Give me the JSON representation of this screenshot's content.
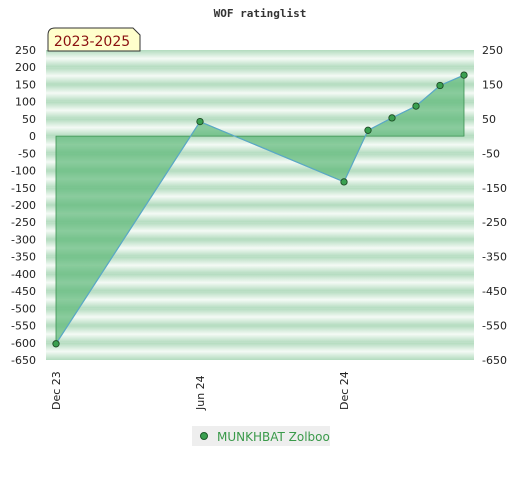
{
  "chart_data": {
    "type": "area",
    "title": "WOF ratinglist",
    "period_label": "2023-2025",
    "xlabel": "",
    "ylabel": "",
    "ylim": [
      -650,
      250
    ],
    "y_ticks": [
      250,
      200,
      150,
      100,
      50,
      0,
      -50,
      -100,
      -150,
      -200,
      -250,
      -300,
      -350,
      -400,
      -450,
      -500,
      -550,
      -600,
      -650
    ],
    "y_ticks_right": [
      250,
      150,
      50,
      -50,
      -150,
      -250,
      -350,
      -450,
      -550,
      -650
    ],
    "x_ticks": [
      {
        "label": "Dec 23",
        "x": "2023-12"
      },
      {
        "label": "Jun 24",
        "x": "2024-06"
      },
      {
        "label": "Dec 24",
        "x": "2024-12"
      }
    ],
    "grid": true,
    "legend_position": "bottom-center",
    "series": [
      {
        "name": "MUNKHBAT Zolboo",
        "points": [
          {
            "x": "2023-12",
            "y": -603
          },
          {
            "x": "2024-06",
            "y": 42
          },
          {
            "x": "2024-12",
            "y": -133
          },
          {
            "x": "2025-01",
            "y": 17
          },
          {
            "x": "2025-02",
            "y": 53
          },
          {
            "x": "2025-03",
            "y": 87
          },
          {
            "x": "2025-04",
            "y": 147
          },
          {
            "x": "2025-05",
            "y": 177
          }
        ]
      }
    ],
    "colors": {
      "area_fill": "#5cb878",
      "line": "#5aa8c8",
      "marker": "#3aa050",
      "band_dark": "#b3dcbf",
      "band_light": "#eef7f0"
    }
  }
}
